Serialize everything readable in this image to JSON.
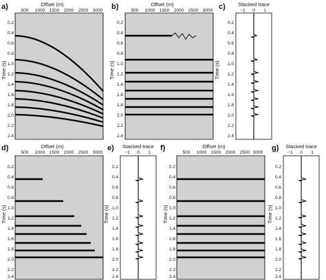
{
  "figure": {
    "panels": [
      {
        "id": "a",
        "letter": "a)",
        "kind": "gather",
        "title": "Offset (m)",
        "ylabel": "Time (s)",
        "xticks": [
          "500",
          "1000",
          "1500",
          "2000",
          "2500",
          "3000"
        ],
        "yticks": [
          "0.2",
          "0.4",
          "0.6",
          "0.8",
          "1.0",
          "1.2",
          "1.4",
          "1.6",
          "1.8",
          "2.0",
          "2.2",
          "2.4"
        ]
      },
      {
        "id": "b",
        "letter": "b)",
        "kind": "gather",
        "title": "Offset (m)",
        "ylabel": "Time (s)",
        "xticks": [
          "500",
          "1000",
          "1500",
          "2000",
          "2500",
          "3000"
        ],
        "yticks": [
          "0.2",
          "0.4",
          "0.6",
          "0.8",
          "1.0",
          "1.2",
          "1.4",
          "1.6",
          "1.8",
          "2.0",
          "2.2",
          "2.4"
        ]
      },
      {
        "id": "c",
        "letter": "c)",
        "kind": "trace",
        "title": "Stacked trace",
        "ylabel": "Time (s)",
        "xticks": [
          "−1",
          "0",
          "1"
        ],
        "yticks": [
          "0.2",
          "0.4",
          "0.6",
          "0.8",
          "1.0",
          "1.2",
          "1.4",
          "1.6",
          "1.8",
          "2.0",
          "2.2",
          "2.4"
        ]
      },
      {
        "id": "d",
        "letter": "d)",
        "kind": "gather",
        "title": "Offset (m)",
        "ylabel": "Time (s)",
        "xticks": [
          "500",
          "1000",
          "1500",
          "2000",
          "2500",
          "3000"
        ],
        "yticks": [
          "0.2",
          "0.4",
          "0.6",
          "0.8",
          "1.0",
          "1.2",
          "1.4",
          "1.6",
          "1.8",
          "2.0",
          "2.2",
          "2.4"
        ]
      },
      {
        "id": "e",
        "letter": "e)",
        "kind": "trace",
        "title": "Stacked trace",
        "ylabel": "Time (s)",
        "xticks": [
          "−1",
          "0",
          "1"
        ],
        "yticks": [
          "0.2",
          "0.4",
          "0.6",
          "0.8",
          "1.0",
          "1.2",
          "1.4",
          "1.6",
          "1.8",
          "2.0",
          "2.2",
          "2.4"
        ]
      },
      {
        "id": "f",
        "letter": "f)",
        "kind": "gather",
        "title": "Offset (m)",
        "ylabel": "Time (s)",
        "xticks": [
          "500",
          "1000",
          "1500",
          "2000",
          "2500",
          "3000"
        ],
        "yticks": [
          "0.2",
          "0.4",
          "0.6",
          "0.8",
          "1.0",
          "1.2",
          "1.4",
          "1.6",
          "1.8",
          "2.0",
          "2.2",
          "2.4"
        ]
      },
      {
        "id": "g",
        "letter": "g)",
        "kind": "trace",
        "title": "Stacked trace",
        "ylabel": "Time (s)",
        "xticks": [
          "−1",
          "0",
          "1"
        ],
        "yticks": [
          "0.2",
          "0.4",
          "0.6",
          "0.8",
          "1.0",
          "1.2",
          "1.4",
          "1.6",
          "1.8",
          "2.0",
          "2.2",
          "2.4"
        ]
      }
    ]
  }
}
